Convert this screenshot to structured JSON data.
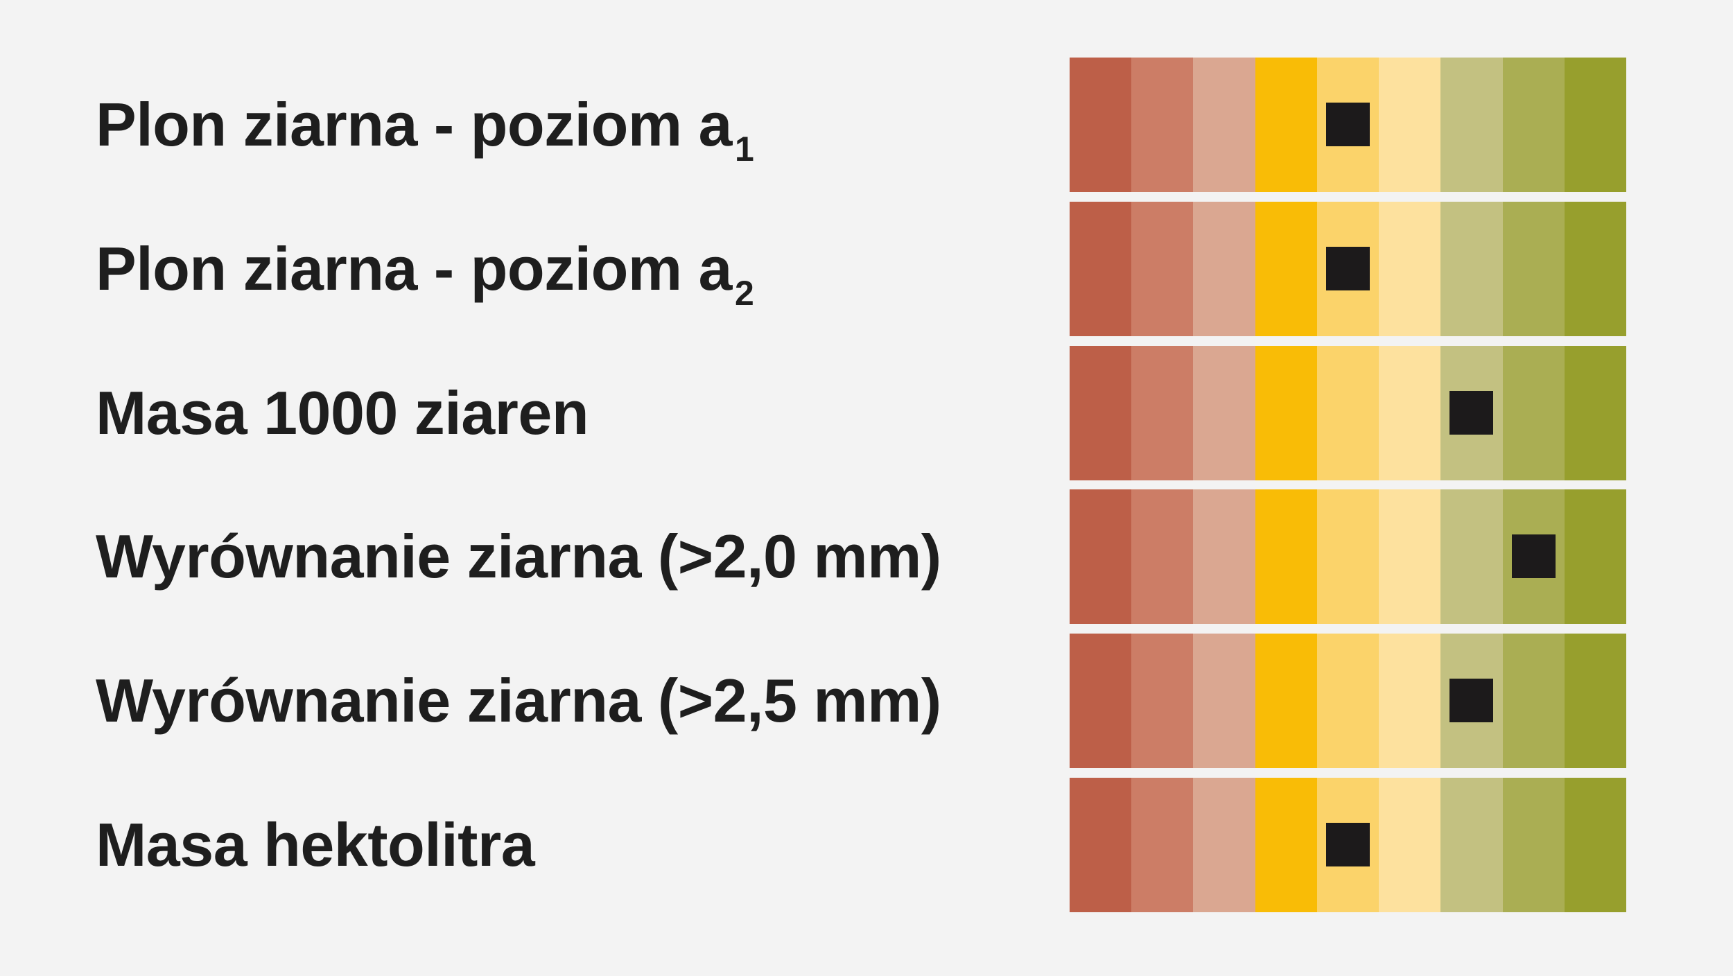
{
  "scale": {
    "levels": 9,
    "colors": [
      "#bd5f48",
      "#cc7d66",
      "#daa791",
      "#f9bc06",
      "#fbd36a",
      "#fde19e",
      "#c3c181",
      "#aaae53",
      "#979f2d"
    ]
  },
  "rows": [
    {
      "label": "Plon ziarna - poziom a",
      "subscript": "1"
    },
    {
      "label": "Plon ziarna - poziom a",
      "subscript": "2"
    },
    {
      "label": "Masa 1000 ziaren",
      "subscript": ""
    },
    {
      "label": "Wyrównanie ziarna (>2,0 mm)",
      "subscript": ""
    },
    {
      "label": "Wyrównanie ziarna (>2,5 mm)",
      "subscript": ""
    },
    {
      "label": "Masa hektolitra",
      "subscript": ""
    }
  ],
  "chart_data": {
    "type": "table",
    "scale_min": 1,
    "scale_max": 9,
    "categories": [
      "Plon ziarna - poziom a1",
      "Plon ziarna - poziom a2",
      "Masa 1000 ziaren",
      "Wyrównanie ziarna (>2,0 mm)",
      "Wyrównanie ziarna (>2,5 mm)",
      "Masa hektolitra"
    ],
    "values": [
      5,
      5,
      7,
      8,
      7,
      5
    ]
  }
}
